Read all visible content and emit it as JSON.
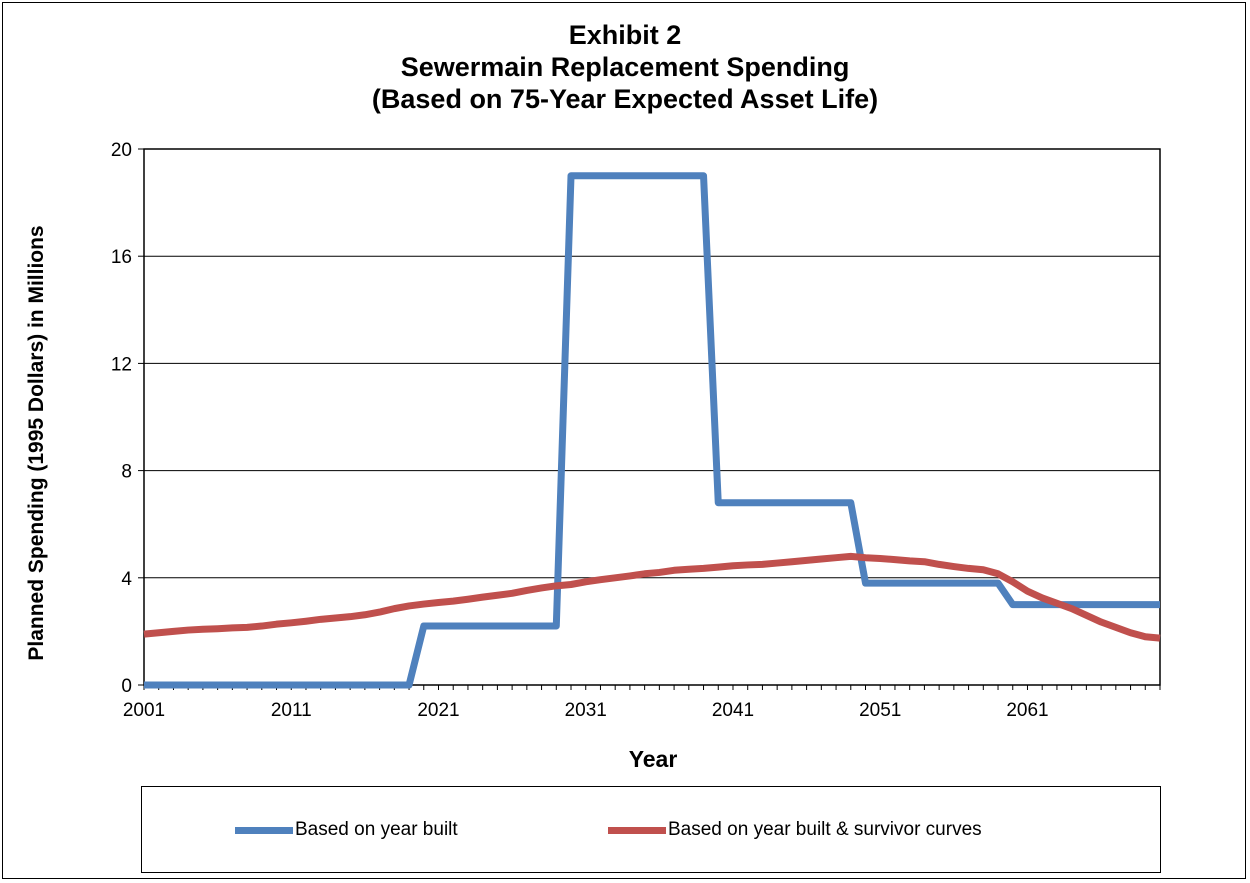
{
  "chart_data": {
    "type": "line",
    "title_lines": [
      "Exhibit 2",
      "Sewermain Replacement Spending",
      "(Based on 75-Year Expected Asset Life)"
    ],
    "xlabel": "Year",
    "ylabel": "Planned Spending (1995 Dollars) in Millions",
    "xlim": [
      2001,
      2070
    ],
    "ylim": [
      0,
      20
    ],
    "x_ticks": [
      2001,
      2011,
      2021,
      2031,
      2041,
      2051,
      2061
    ],
    "y_ticks": [
      0,
      4,
      8,
      12,
      16,
      20
    ],
    "grid": "horizontal",
    "legend_position": "bottom",
    "series": [
      {
        "name": "Based on year built",
        "color": "#4F81BD",
        "points": [
          [
            2001,
            0
          ],
          [
            2019,
            0
          ],
          [
            2020,
            2.2
          ],
          [
            2029,
            2.2
          ],
          [
            2030,
            19.0
          ],
          [
            2039,
            19.0
          ],
          [
            2040,
            6.8
          ],
          [
            2049,
            6.8
          ],
          [
            2050,
            3.8
          ],
          [
            2059,
            3.8
          ],
          [
            2060,
            3.0
          ],
          [
            2070,
            3.0
          ]
        ]
      },
      {
        "name": "Based on year built & survivor curves",
        "color": "#C0504D",
        "points": [
          [
            2001,
            1.9
          ],
          [
            2002,
            1.95
          ],
          [
            2003,
            2.0
          ],
          [
            2004,
            2.05
          ],
          [
            2005,
            2.08
          ],
          [
            2006,
            2.1
          ],
          [
            2007,
            2.13
          ],
          [
            2008,
            2.15
          ],
          [
            2009,
            2.2
          ],
          [
            2010,
            2.27
          ],
          [
            2011,
            2.32
          ],
          [
            2012,
            2.38
          ],
          [
            2013,
            2.45
          ],
          [
            2014,
            2.5
          ],
          [
            2015,
            2.55
          ],
          [
            2016,
            2.62
          ],
          [
            2017,
            2.72
          ],
          [
            2018,
            2.85
          ],
          [
            2019,
            2.95
          ],
          [
            2020,
            3.02
          ],
          [
            2021,
            3.08
          ],
          [
            2022,
            3.13
          ],
          [
            2023,
            3.2
          ],
          [
            2024,
            3.28
          ],
          [
            2025,
            3.35
          ],
          [
            2026,
            3.42
          ],
          [
            2027,
            3.53
          ],
          [
            2028,
            3.62
          ],
          [
            2029,
            3.7
          ],
          [
            2030,
            3.75
          ],
          [
            2031,
            3.85
          ],
          [
            2032,
            3.93
          ],
          [
            2033,
            4.0
          ],
          [
            2034,
            4.07
          ],
          [
            2035,
            4.15
          ],
          [
            2036,
            4.2
          ],
          [
            2037,
            4.28
          ],
          [
            2038,
            4.32
          ],
          [
            2039,
            4.35
          ],
          [
            2040,
            4.4
          ],
          [
            2041,
            4.45
          ],
          [
            2042,
            4.48
          ],
          [
            2043,
            4.5
          ],
          [
            2044,
            4.55
          ],
          [
            2045,
            4.6
          ],
          [
            2046,
            4.65
          ],
          [
            2047,
            4.7
          ],
          [
            2048,
            4.75
          ],
          [
            2049,
            4.8
          ],
          [
            2050,
            4.75
          ],
          [
            2051,
            4.72
          ],
          [
            2052,
            4.68
          ],
          [
            2053,
            4.63
          ],
          [
            2054,
            4.6
          ],
          [
            2055,
            4.5
          ],
          [
            2056,
            4.42
          ],
          [
            2057,
            4.35
          ],
          [
            2058,
            4.3
          ],
          [
            2059,
            4.15
          ],
          [
            2060,
            3.85
          ],
          [
            2061,
            3.5
          ],
          [
            2062,
            3.25
          ],
          [
            2063,
            3.05
          ],
          [
            2064,
            2.85
          ],
          [
            2065,
            2.6
          ],
          [
            2066,
            2.35
          ],
          [
            2067,
            2.15
          ],
          [
            2068,
            1.95
          ],
          [
            2069,
            1.8
          ],
          [
            2070,
            1.75
          ]
        ]
      }
    ]
  }
}
